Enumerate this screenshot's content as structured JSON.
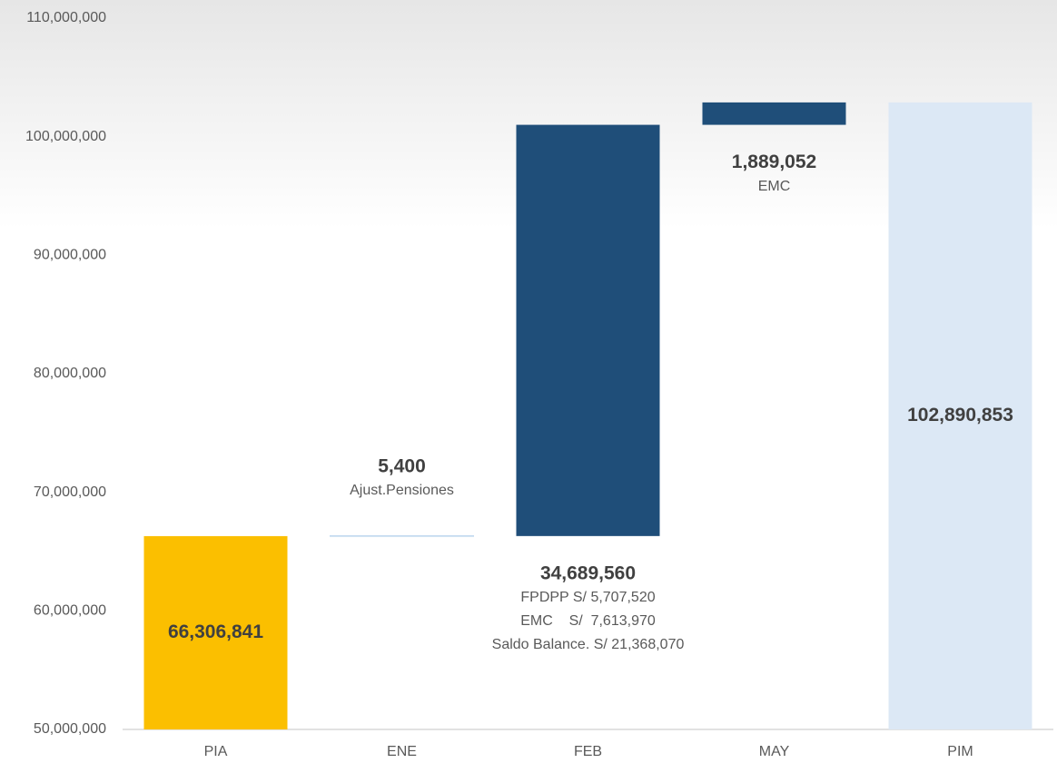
{
  "chart_data": {
    "type": "waterfall",
    "categories": [
      "PIA",
      "ENE",
      "FEB",
      "MAY",
      "PIM"
    ],
    "measure": [
      "absolute",
      "relative",
      "relative",
      "relative",
      "total"
    ],
    "values": [
      66306841,
      5400,
      34689560,
      1889052,
      102890853
    ],
    "value_labels": [
      "66,306,841",
      "5,400",
      "34,689,560",
      "1,889,052",
      "102,890,853"
    ],
    "notes": [
      null,
      [
        "Ajust.Pensiones"
      ],
      [
        "FPDPP S/ 5,707,520",
        "EMC    S/  7,613,970",
        "Saldo Balance. S/ 21,368,070"
      ],
      [
        "EMC"
      ],
      null
    ],
    "colors": [
      "#fbbf00",
      "#9dc3e6",
      "#1f4e79",
      "#1f4e79",
      "#dce8f5"
    ],
    "ylim": [
      50000000,
      110000000
    ],
    "yticks": [
      {
        "value": 50000000,
        "label": "50,000,000"
      },
      {
        "value": 60000000,
        "label": "60,000,000"
      },
      {
        "value": 70000000,
        "label": "70,000,000"
      },
      {
        "value": 80000000,
        "label": "80,000,000"
      },
      {
        "value": 90000000,
        "label": "90,000,000"
      },
      {
        "value": 100000000,
        "label": "100,000,000"
      },
      {
        "value": 110000000,
        "label": "110,000,000"
      }
    ]
  }
}
